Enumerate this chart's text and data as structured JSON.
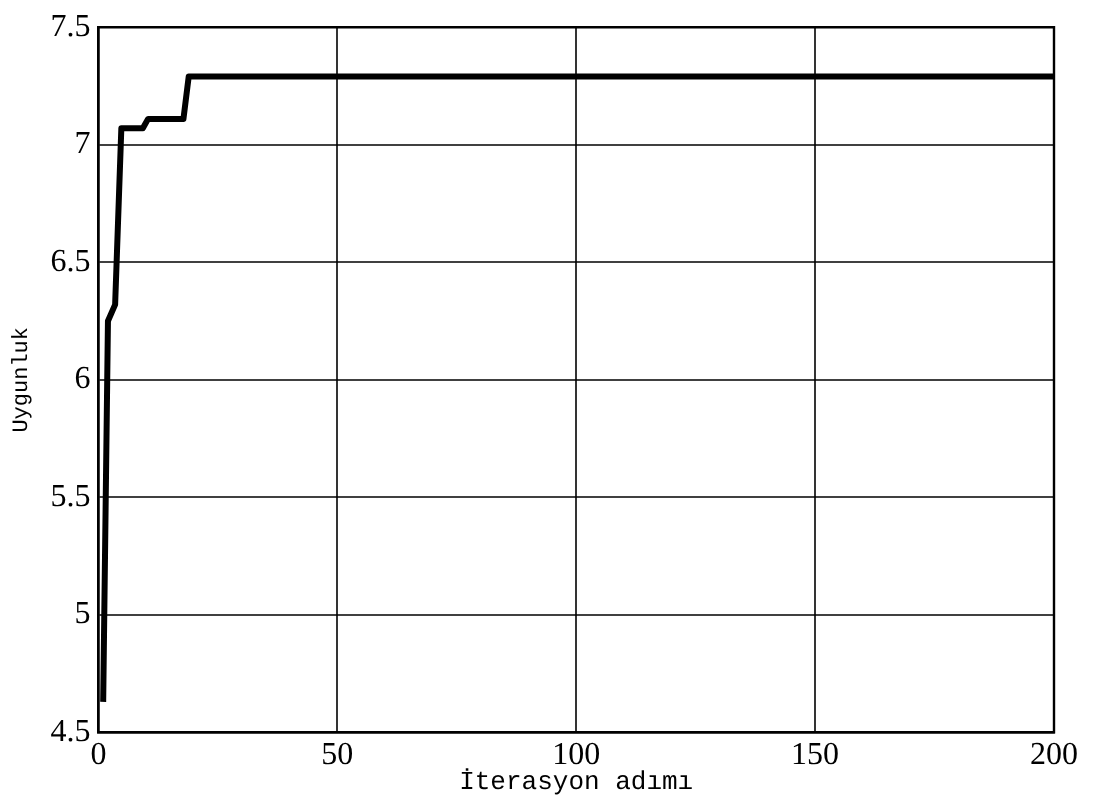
{
  "chart_data": {
    "type": "line",
    "xlabel": "İterasyon adımı",
    "ylabel": "Uygunluk",
    "x": [
      1,
      2,
      3.5,
      4.8,
      9.3,
      10.4,
      17.8,
      18.9,
      200
    ],
    "series": [
      {
        "color": "#000000",
        "values": [
          4.63,
          6.25,
          6.32,
          7.07,
          7.07,
          7.11,
          7.11,
          7.29,
          7.29
        ]
      }
    ],
    "xlim": [
      0,
      200
    ],
    "xticks": [
      0,
      50,
      100,
      150,
      200
    ],
    "ylim": [
      4.5,
      7.5
    ],
    "yticks": [
      4.5,
      5,
      5.5,
      6,
      6.5,
      7,
      7.5
    ],
    "grid": true,
    "legend": false,
    "marker": "none",
    "line_style": "solid"
  }
}
